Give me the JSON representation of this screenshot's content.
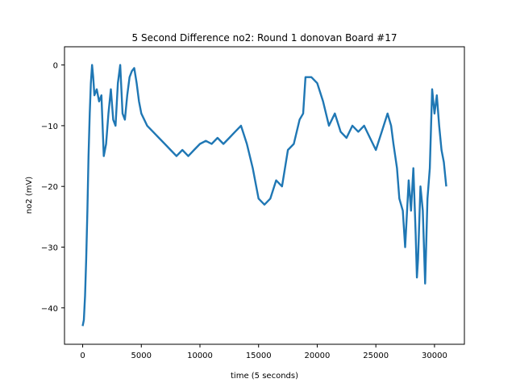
{
  "chart_data": {
    "type": "line",
    "title": "5 Second Difference no2: Round 1 donovan Board #17",
    "xlabel": "time (5 seconds)",
    "ylabel": "no2 (mV)",
    "xlim": [
      -1550,
      32550
    ],
    "ylim": [
      -46,
      3
    ],
    "xticks": [
      0,
      5000,
      10000,
      15000,
      20000,
      25000,
      30000
    ],
    "yticks": [
      0,
      -10,
      -20,
      -30,
      -40
    ],
    "grid": false,
    "line_color": "#1f77b4",
    "series": [
      {
        "x": [
          0,
          100,
          200,
          300,
          400,
          500,
          600,
          700,
          800,
          900,
          1000,
          1200,
          1400,
          1600,
          1800,
          2000,
          2200,
          2400,
          2600,
          2800,
          3000,
          3200,
          3400,
          3600,
          3800,
          4000,
          4200,
          4400,
          4600,
          4800,
          5000,
          5500,
          6000,
          6500,
          7000,
          7500,
          8000,
          8500,
          9000,
          9500,
          10000,
          10500,
          11000,
          11500,
          12000,
          12500,
          13000,
          13500,
          14000,
          14500,
          14800,
          15000,
          15500,
          16000,
          16500,
          17000,
          17500,
          18000,
          18500,
          18800,
          19000,
          19500,
          20000,
          20500,
          21000,
          21500,
          22000,
          22500,
          23000,
          23500,
          24000,
          24500,
          25000,
          25500,
          26000,
          26300,
          26500,
          26800,
          27000,
          27300,
          27500,
          27800,
          28000,
          28200,
          28400,
          28500,
          28600,
          28800,
          29000,
          29200,
          29400,
          29600,
          29800,
          30000,
          30200,
          30400,
          30600,
          30800,
          31000
        ],
        "y": [
          -43,
          -42,
          -38,
          -32,
          -24,
          -15,
          -8,
          -3,
          0,
          -2,
          -5,
          -4,
          -6,
          -5,
          -15,
          -13,
          -8,
          -4,
          -9,
          -10,
          -3,
          0,
          -8,
          -9,
          -5,
          -2,
          -1,
          -0.5,
          -3,
          -6,
          -8,
          -10,
          -11,
          -12,
          -13,
          -14,
          -15,
          -14,
          -15,
          -14,
          -13,
          -12.5,
          -13,
          -12,
          -13,
          -12,
          -11,
          -10,
          -13,
          -17,
          -20,
          -22,
          -23,
          -22,
          -19,
          -20,
          -14,
          -13,
          -9,
          -8,
          -2,
          -2,
          -3,
          -6,
          -10,
          -8,
          -11,
          -12,
          -10,
          -11,
          -10,
          -12,
          -14,
          -11,
          -8,
          -10,
          -13,
          -17,
          -22,
          -24,
          -30,
          -19,
          -24,
          -17,
          -28,
          -35,
          -32,
          -20,
          -24,
          -36,
          -22,
          -17,
          -4,
          -8,
          -5,
          -10,
          -14,
          -16,
          -20
        ]
      }
    ]
  }
}
